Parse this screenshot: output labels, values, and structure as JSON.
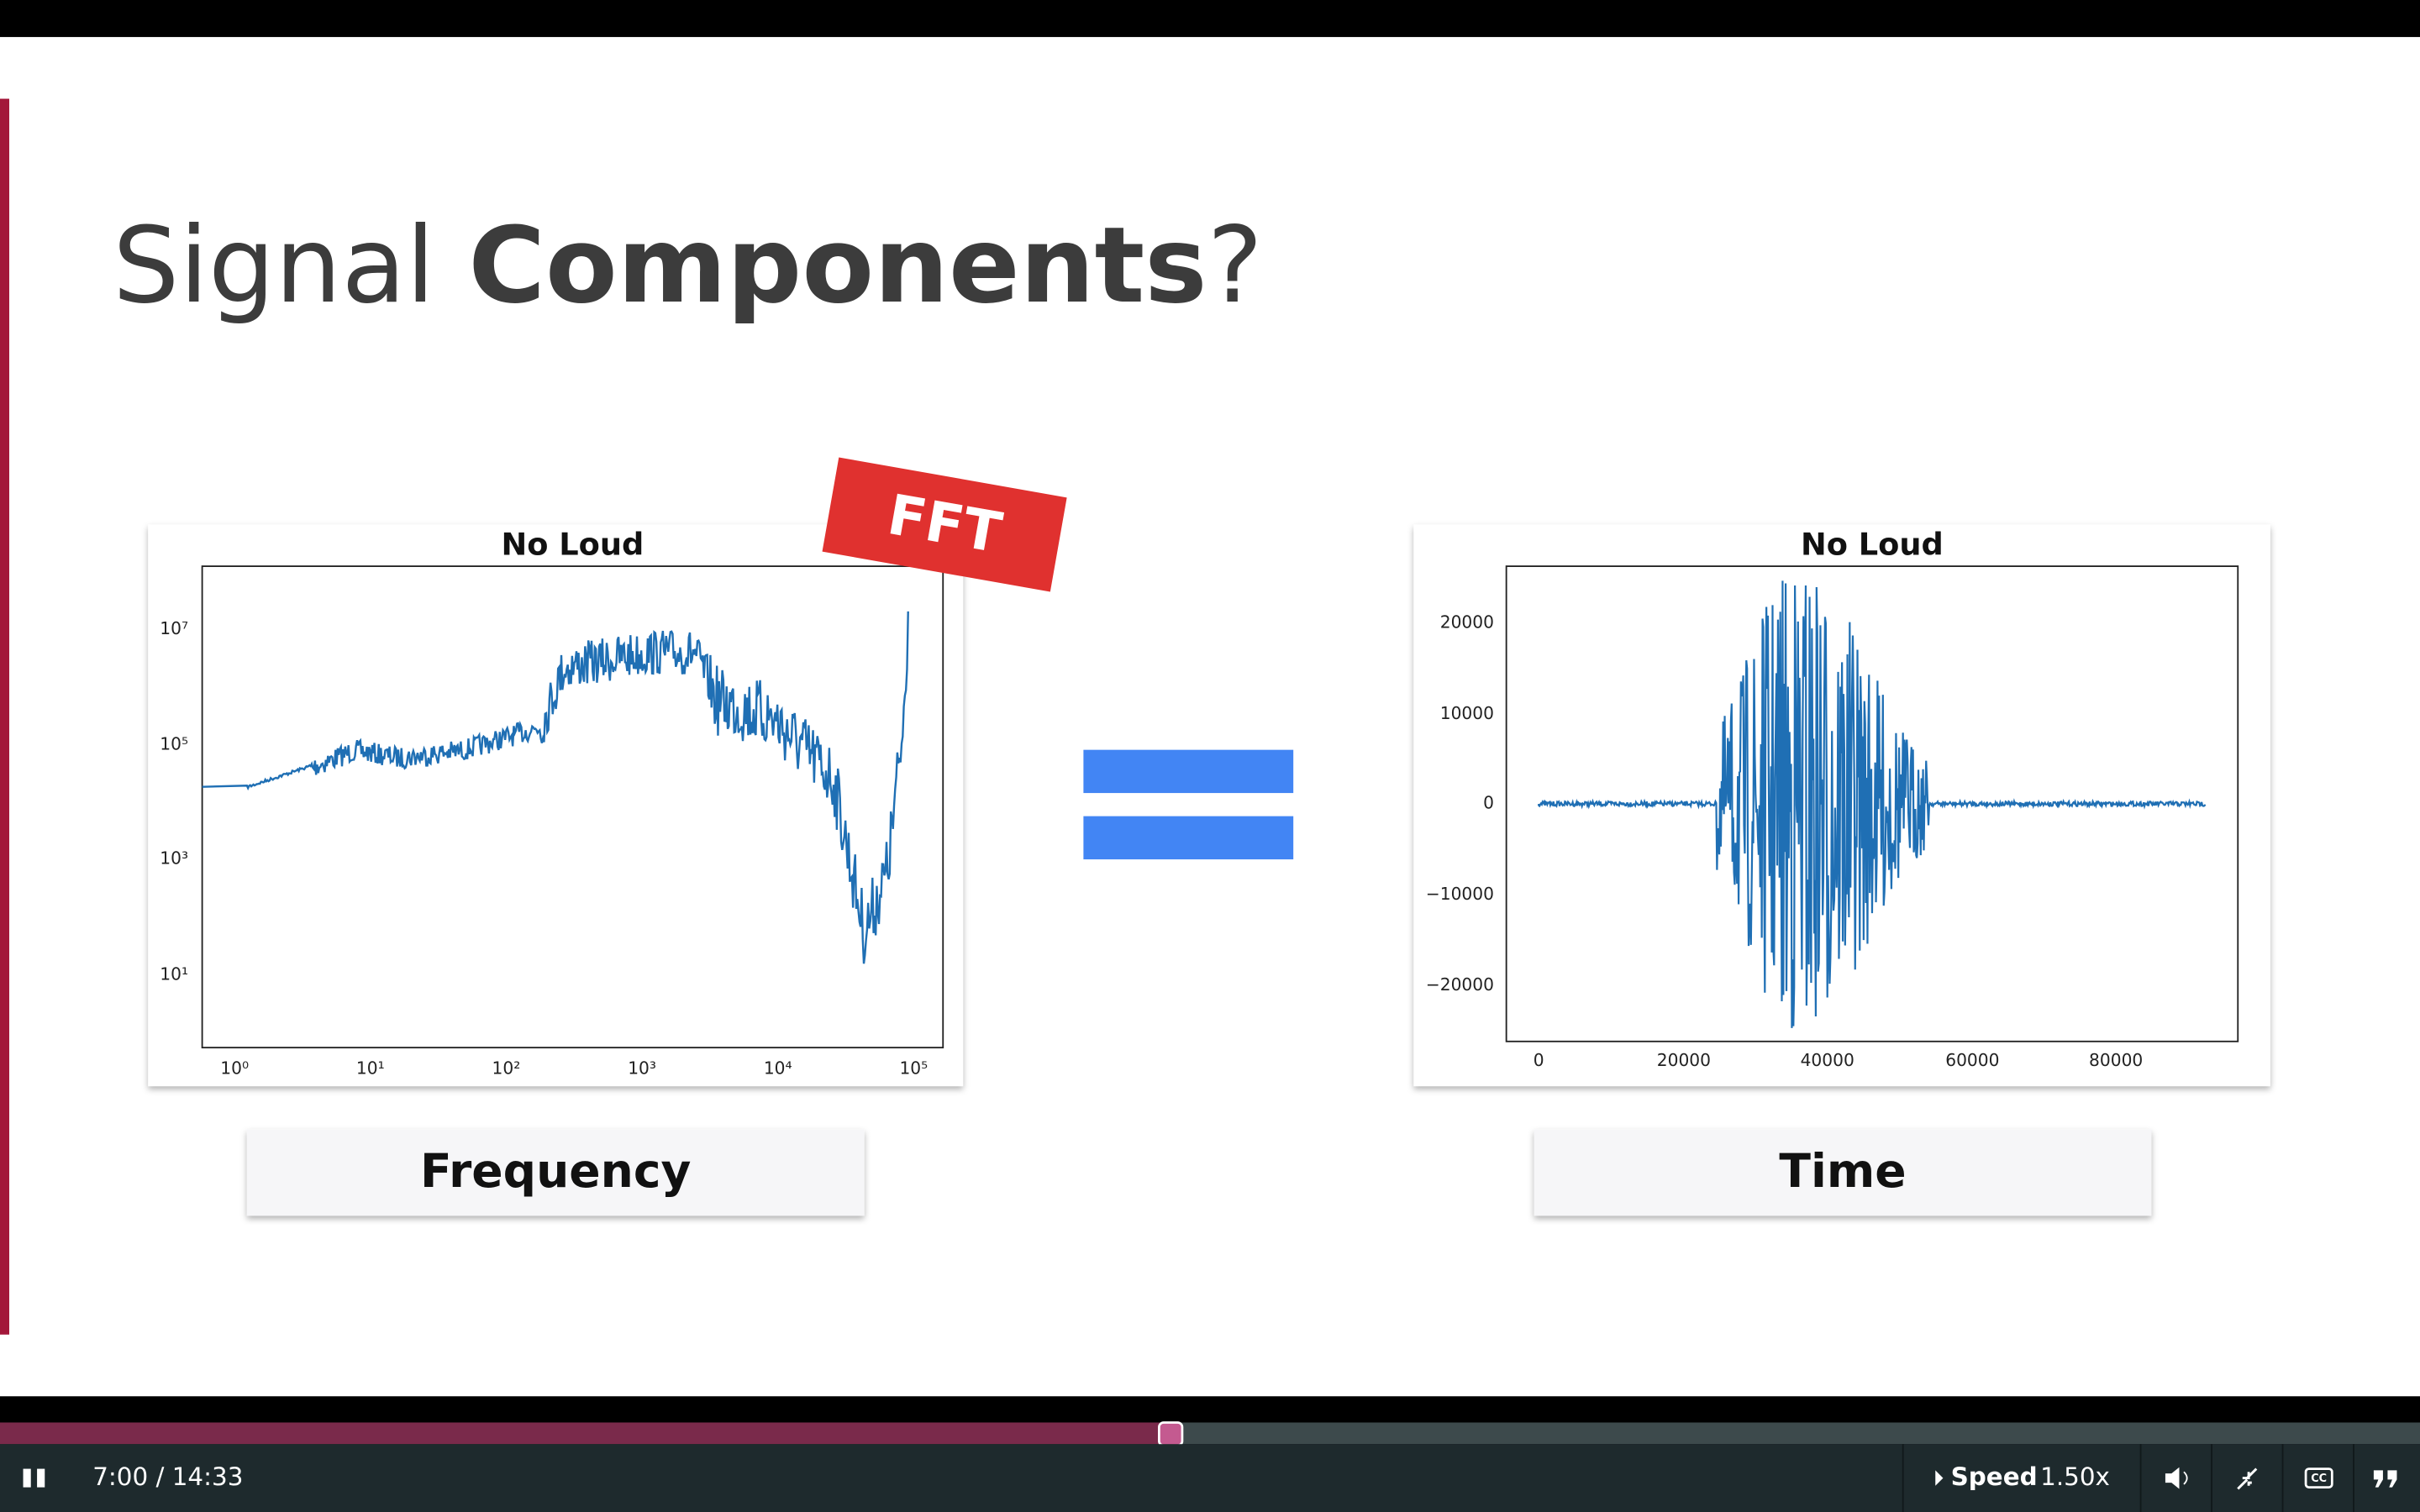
{
  "slide": {
    "title_regular": "Signal",
    "title_bold": "Components",
    "title_end": "?",
    "left_plot": {
      "title": "No Loud",
      "badge": "FFT",
      "caption": "Frequency",
      "yticks": [
        "10⁷",
        "10⁵",
        "10³",
        "10¹"
      ],
      "xticks": [
        "10⁰",
        "10¹",
        "10²",
        "10³",
        "10⁴",
        "10⁵"
      ]
    },
    "right_plot": {
      "title": "No Loud",
      "caption": "Time",
      "yticks": [
        "20000",
        "10000",
        "0",
        "−10000",
        "−20000"
      ],
      "xticks": [
        "0",
        "20000",
        "40000",
        "60000",
        "80000"
      ]
    }
  },
  "player": {
    "time": "7:00 / 14:33",
    "speed_label": "Speed",
    "speed_value": "1.50x"
  }
}
